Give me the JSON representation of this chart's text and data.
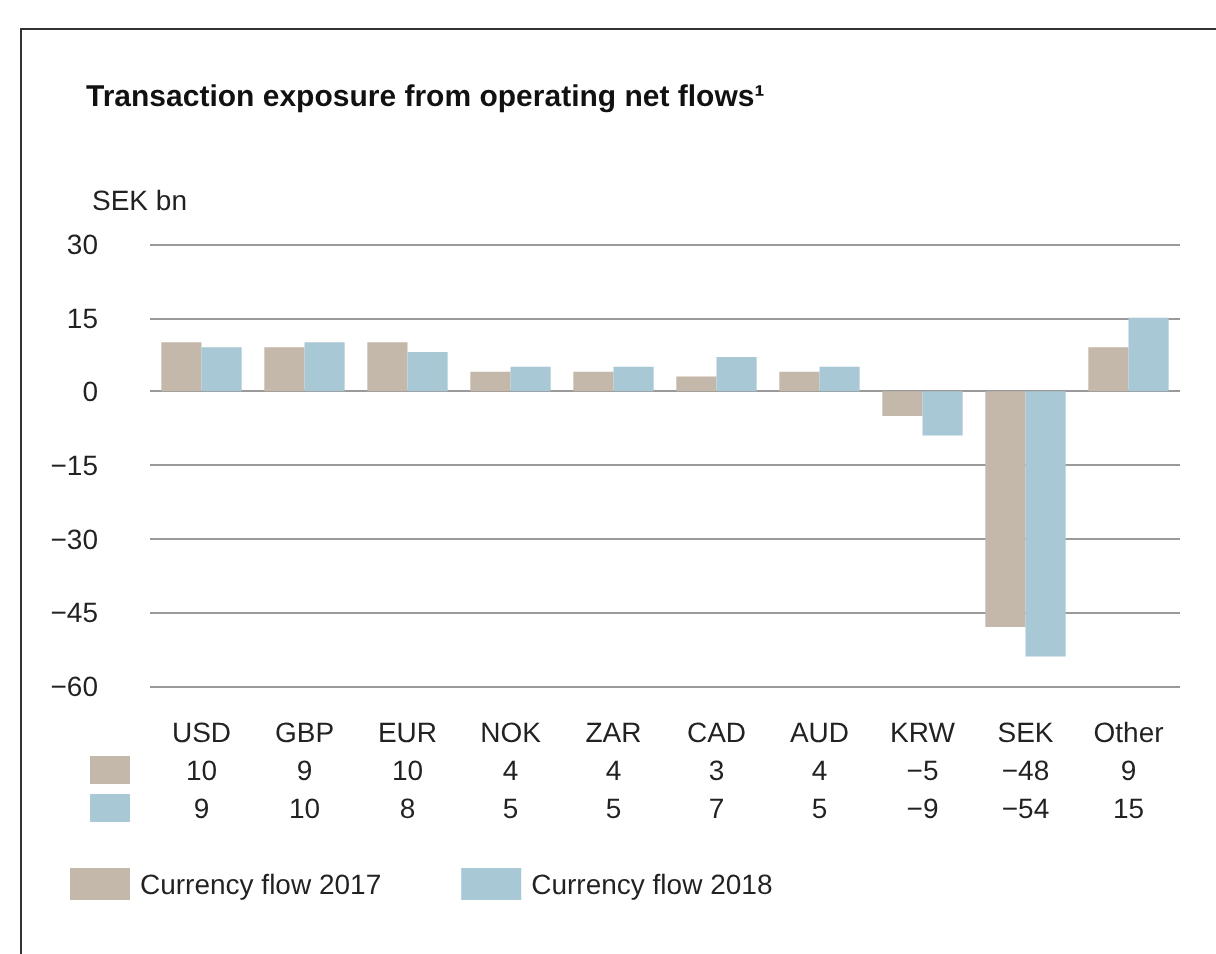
{
  "chart_data": {
    "type": "bar",
    "title": "Transaction exposure from operating net flows¹",
    "ylabel": "SEK bn",
    "categories": [
      "USD",
      "GBP",
      "EUR",
      "NOK",
      "ZAR",
      "CAD",
      "AUD",
      "KRW",
      "SEK",
      "Other"
    ],
    "series": [
      {
        "name": "Currency flow 2017",
        "color": "#c3b8a9",
        "values": [
          10,
          9,
          10,
          4,
          4,
          3,
          4,
          -5,
          -48,
          9
        ]
      },
      {
        "name": "Currency flow 2018",
        "color": "#a8c8d6",
        "values": [
          9,
          10,
          8,
          5,
          5,
          7,
          5,
          -9,
          -54,
          15
        ]
      }
    ],
    "ylim": [
      -60,
      30
    ],
    "yticks": [
      -60,
      -45,
      -30,
      -15,
      0,
      15,
      30
    ],
    "grid": "y",
    "legend": "bottom",
    "data_labels": true
  }
}
